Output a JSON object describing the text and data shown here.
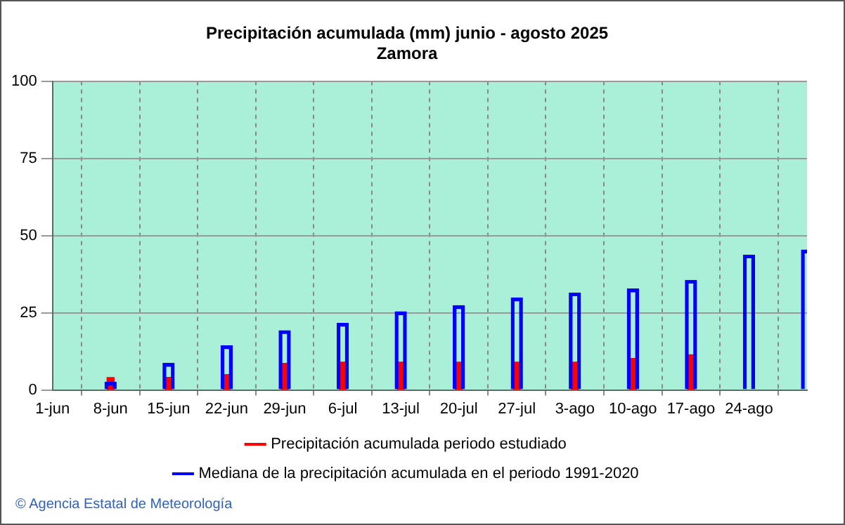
{
  "chart_data": {
    "type": "bar",
    "title": "Precipitación acumulada (mm) junio - agosto 2025",
    "subtitle": "Zamora",
    "categories": [
      "1-jun",
      "8-jun",
      "15-jun",
      "22-jun",
      "29-jun",
      "6-jul",
      "13-jul",
      "20-jul",
      "27-jul",
      "3-ago",
      "10-ago",
      "17-ago",
      "24-ago",
      null
    ],
    "series": [
      {
        "name": "Precipitación acumulada periodo estudiado",
        "color": "#ff0000",
        "values": [
          null,
          4,
          4.1,
          5,
          8.6,
          9,
          9,
          9,
          9,
          9,
          10.2,
          11.4,
          null,
          null
        ]
      },
      {
        "name": "Mediana de la precipitación acumulada en el periodo 1991-2020",
        "color": "#0000ff",
        "values": [
          null,
          2.5,
          8.6,
          14.3,
          19.2,
          21.6,
          25.3,
          27.3,
          29.8,
          31.4,
          32.7,
          35.5,
          43.7,
          45.3
        ]
      }
    ],
    "ylim": [
      0,
      100
    ],
    "yticks": [
      0,
      25,
      50,
      75,
      100
    ],
    "grid": true,
    "legend": "bottom",
    "annotations": [
      "© Agencia Estatal de Meteorología"
    ]
  }
}
